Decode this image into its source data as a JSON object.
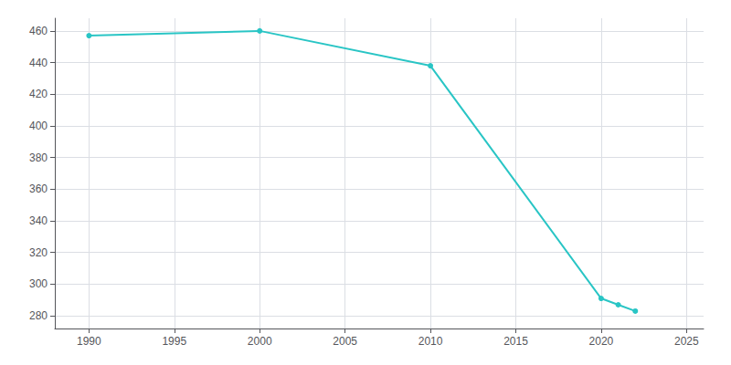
{
  "chart_data": {
    "type": "line",
    "x": [
      1990,
      2000,
      2010,
      2020,
      2021,
      2022
    ],
    "values": [
      457,
      460,
      438,
      291,
      287,
      283
    ],
    "color": "#29c5c5",
    "marker": "circle",
    "xlim": [
      1988,
      2026
    ],
    "ylim": [
      272,
      468
    ],
    "xticks": [
      1990,
      1995,
      2000,
      2005,
      2010,
      2015,
      2020,
      2025
    ],
    "yticks": [
      280,
      300,
      320,
      340,
      360,
      380,
      400,
      420,
      440,
      460
    ],
    "grid": true
  }
}
